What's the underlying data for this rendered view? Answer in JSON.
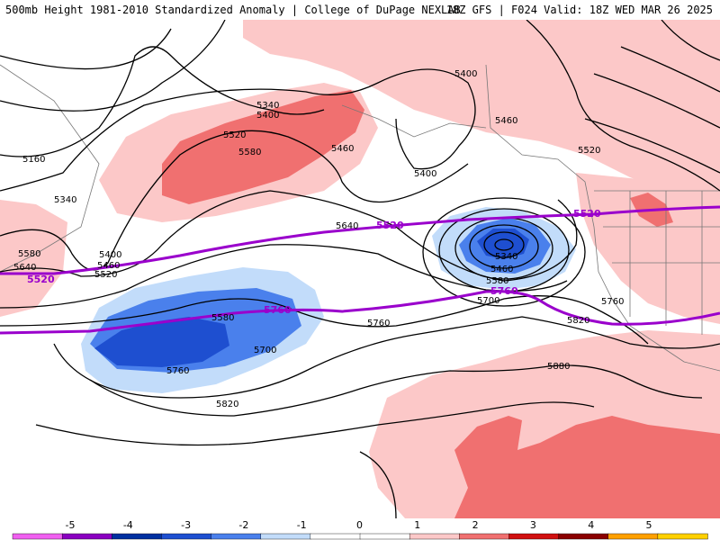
{
  "header": {
    "title_left": "500mb Height 1981-2010 Standardized Anomaly | College of DuPage NEXLAB",
    "title_right": "18Z GFS | F024 Valid: 18Z WED MAR 26 2025"
  },
  "colors": {
    "anom_neg3": "#1e4fd0",
    "anom_neg2": "#4a80ec",
    "anom_neg1": "#c2dcfa",
    "anom_pos1": "#fcc8c8",
    "anom_pos2": "#f07070",
    "highlight_contour": "#9a00cc",
    "contour": "#000000",
    "coastline": "#777777"
  },
  "colorbar": {
    "ticks": [
      "-5",
      "-4",
      "-3",
      "-2",
      "-1",
      "0",
      "1",
      "2",
      "3",
      "4",
      "5"
    ],
    "colors": [
      "#f060f0",
      "#8a00c0",
      "#0030a0",
      "#1e4fd0",
      "#4a80ec",
      "#c2dcfa",
      "#ffffff",
      "#ffffff",
      "#fcc8c8",
      "#f07070",
      "#d01010",
      "#8a0000",
      "#ffa000",
      "#ffd000"
    ]
  },
  "contour_labels": [
    "5400",
    "5340",
    "5400",
    "5460",
    "5520",
    "5580",
    "5160",
    "5340",
    "5400",
    "5460",
    "5520",
    "5580",
    "5640",
    "5640",
    "5400",
    "5460",
    "5520",
    "5340",
    "5460",
    "5580",
    "5700",
    "5580",
    "5700",
    "5760",
    "5760",
    "5820",
    "5820",
    "5880",
    "5760"
  ],
  "highlight_labels": [
    "5520",
    "5520",
    "5520",
    "5760",
    "5760"
  ]
}
